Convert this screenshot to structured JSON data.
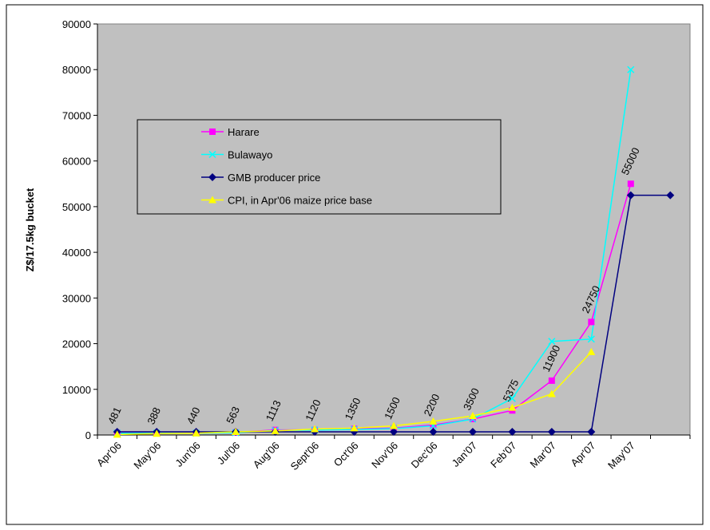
{
  "chart_data": {
    "type": "line",
    "y_label": "Z$/17.5kg bucket",
    "categories": [
      "Apr'06",
      "May'06",
      "Jun'06",
      "Jul'06",
      "Aug'06",
      "Sept'06",
      "Oct'06",
      "Nov'06",
      "Dec'06",
      "Jan'07",
      "Feb'07",
      "Mar'07",
      "Apr'07",
      "May'07",
      null
    ],
    "series": [
      {
        "name": "Harare",
        "color": "#ff00ff",
        "marker": "square",
        "data_labels": true,
        "values": [
          481,
          388,
          440,
          563,
          1113,
          1120,
          1350,
          1500,
          2200,
          3500,
          5375,
          11900,
          24750,
          55000,
          null
        ]
      },
      {
        "name": "Bulawayo",
        "color": "#00ffff",
        "marker": "x",
        "values": [
          400,
          400,
          400,
          500,
          1000,
          1100,
          1200,
          1400,
          2000,
          3500,
          8000,
          20500,
          21000,
          80000,
          null
        ]
      },
      {
        "name": "GMB producer price",
        "color": "#000080",
        "marker": "diamond",
        "values": [
          700,
          700,
          700,
          700,
          700,
          700,
          700,
          700,
          700,
          700,
          700,
          700,
          700,
          52500,
          52500
        ]
      },
      {
        "name": "CPI, in Apr'06 maize price base",
        "color": "#ffff00",
        "marker": "triangle",
        "values": [
          100,
          300,
          400,
          700,
          900,
          1300,
          1500,
          2000,
          3000,
          4200,
          6000,
          9000,
          18200,
          null,
          null
        ]
      }
    ],
    "ylim": [
      0,
      90000
    ],
    "yticks": [
      0,
      10000,
      20000,
      30000,
      40000,
      50000,
      60000,
      70000,
      80000,
      90000
    ],
    "plot_background": "#c0c0c0"
  }
}
